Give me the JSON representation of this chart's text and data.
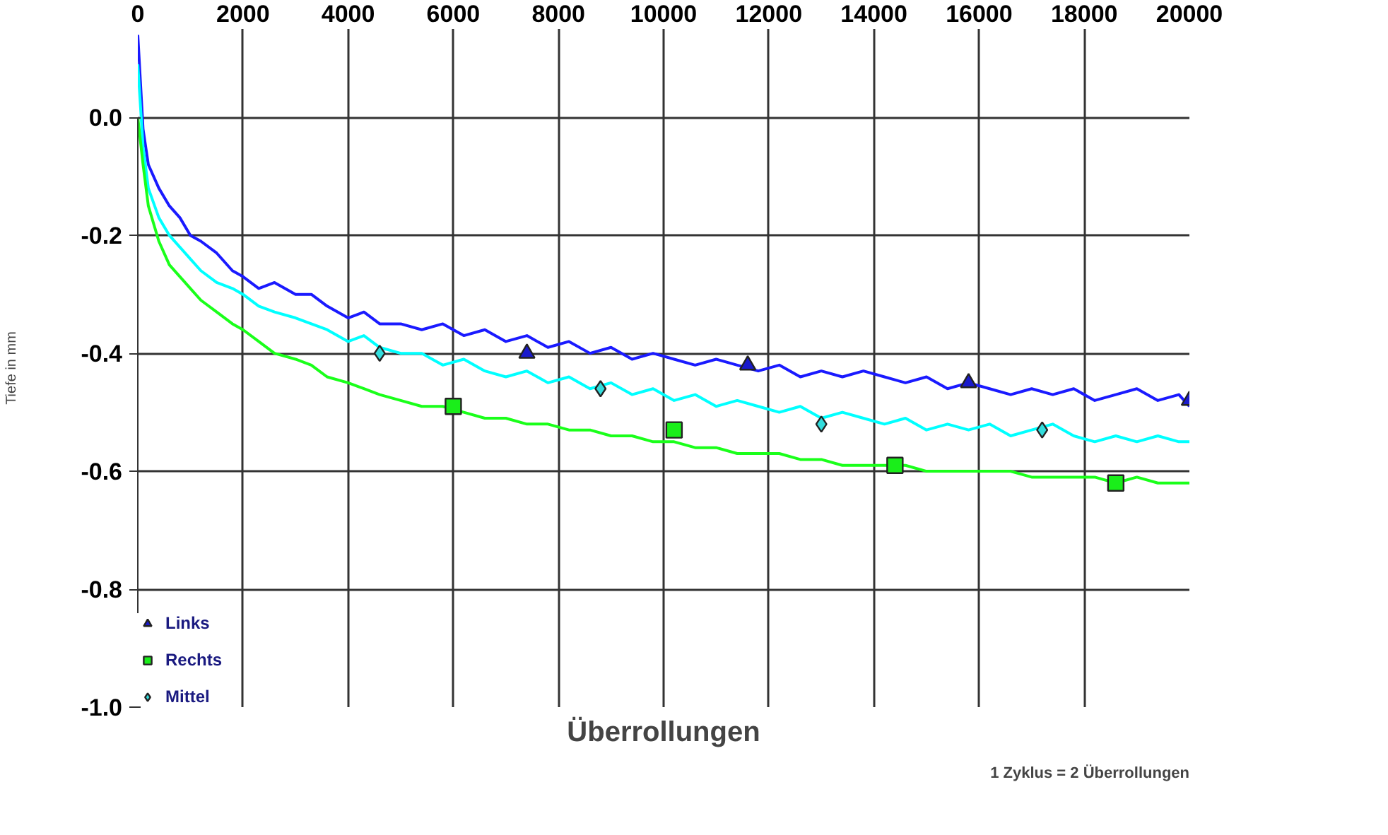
{
  "chart_data": {
    "type": "line",
    "xlabel": "Überrollungen",
    "ylabel": "Tiefe in mm",
    "annotations": [
      "1 Zyklus = 2 Überrollungen"
    ],
    "x": [
      0,
      100,
      200,
      400,
      600,
      800,
      1000,
      1200,
      1500,
      1800,
      2000,
      2300,
      2600,
      3000,
      3300,
      3600,
      4000,
      4300,
      4600,
      5000,
      5400,
      5800,
      6200,
      6600,
      7000,
      7400,
      7800,
      8200,
      8600,
      9000,
      9400,
      9800,
      10200,
      10600,
      11000,
      11400,
      11800,
      12200,
      12600,
      13000,
      13400,
      13800,
      14200,
      14600,
      15000,
      15400,
      15800,
      16200,
      16600,
      17000,
      17400,
      17800,
      18200,
      18600,
      19000,
      19400,
      19800,
      20000
    ],
    "xlim": [
      0,
      20000
    ],
    "xticks": [
      0,
      2000,
      4000,
      6000,
      8000,
      10000,
      12000,
      14000,
      16000,
      18000,
      20000
    ],
    "ylim": [
      -1.0,
      0.15
    ],
    "yticks": [
      {
        "value": -1.0,
        "label": "-1.0"
      },
      {
        "value": -0.8,
        "label": "-0.8"
      },
      {
        "value": -0.6,
        "label": "-0.6"
      },
      {
        "value": -0.4,
        "label": "-0.4"
      },
      {
        "value": -0.2,
        "label": "-0.2"
      },
      {
        "value": 0.0,
        "label": "0.0"
      }
    ],
    "grid": true,
    "legend": "bottom left",
    "line_style": "solid",
    "series": [
      {
        "color": "#1a1aff",
        "values": [
          0.14,
          -0.02,
          -0.08,
          -0.12,
          -0.15,
          -0.17,
          -0.2,
          -0.21,
          -0.23,
          -0.26,
          -0.27,
          -0.29,
          -0.28,
          -0.3,
          -0.3,
          -0.32,
          -0.34,
          -0.33,
          -0.35,
          -0.35,
          -0.36,
          -0.35,
          -0.37,
          -0.36,
          -0.38,
          -0.37,
          -0.39,
          -0.38,
          -0.4,
          -0.39,
          -0.41,
          -0.4,
          -0.41,
          -0.42,
          -0.41,
          -0.42,
          -0.43,
          -0.42,
          -0.44,
          -0.43,
          -0.44,
          -0.43,
          -0.44,
          -0.45,
          -0.44,
          -0.46,
          -0.45,
          -0.46,
          -0.47,
          -0.46,
          -0.47,
          -0.46,
          -0.48,
          -0.47,
          -0.46,
          -0.48,
          -0.47,
          -0.49
        ]
      },
      {
        "color": "#00ffff",
        "values": [
          0.09,
          -0.05,
          -0.12,
          -0.17,
          -0.2,
          -0.22,
          -0.24,
          -0.26,
          -0.28,
          -0.29,
          -0.3,
          -0.32,
          -0.33,
          -0.34,
          -0.35,
          -0.36,
          -0.38,
          -0.37,
          -0.39,
          -0.4,
          -0.4,
          -0.42,
          -0.41,
          -0.43,
          -0.44,
          -0.43,
          -0.45,
          -0.44,
          -0.46,
          -0.45,
          -0.47,
          -0.46,
          -0.48,
          -0.47,
          -0.49,
          -0.48,
          -0.49,
          -0.5,
          -0.49,
          -0.51,
          -0.5,
          -0.51,
          -0.52,
          -0.51,
          -0.53,
          -0.52,
          -0.53,
          -0.52,
          -0.54,
          -0.53,
          -0.52,
          -0.54,
          -0.55,
          -0.54,
          -0.55,
          -0.54,
          -0.55,
          -0.55
        ]
      },
      {
        "color": "#1aff1a",
        "values": [
          0.0,
          -0.08,
          -0.15,
          -0.21,
          -0.25,
          -0.27,
          -0.29,
          -0.31,
          -0.33,
          -0.35,
          -0.36,
          -0.38,
          -0.4,
          -0.41,
          -0.42,
          -0.44,
          -0.45,
          -0.46,
          -0.47,
          -0.48,
          -0.49,
          -0.49,
          -0.5,
          -0.51,
          -0.51,
          -0.52,
          -0.52,
          -0.53,
          -0.53,
          -0.54,
          -0.54,
          -0.55,
          -0.55,
          -0.56,
          -0.56,
          -0.57,
          -0.57,
          -0.57,
          -0.58,
          -0.58,
          -0.59,
          -0.59,
          -0.59,
          -0.59,
          -0.6,
          -0.6,
          -0.6,
          -0.6,
          -0.6,
          -0.61,
          -0.61,
          -0.61,
          -0.61,
          -0.62,
          -0.61,
          -0.62,
          -0.62,
          -0.62
        ]
      },
      {
        "type": "scatter",
        "name": "Links",
        "color": "#1a1acc",
        "marker": "triangle",
        "x": [
          7400,
          11600,
          15800,
          20000
        ],
        "values": [
          -0.4,
          -0.42,
          -0.45,
          -0.48
        ]
      },
      {
        "type": "scatter",
        "name": "Rechts",
        "color": "#1aee1a",
        "marker": "square",
        "x": [
          6000,
          10200,
          14400,
          18600
        ],
        "values": [
          -0.49,
          -0.53,
          -0.59,
          -0.62
        ]
      },
      {
        "type": "scatter",
        "name": "Mittel",
        "color": "#33dddd",
        "marker": "diamond",
        "x": [
          4600,
          8800,
          13000,
          17200
        ],
        "values": [
          -0.4,
          -0.46,
          -0.52,
          -0.53
        ]
      }
    ]
  }
}
